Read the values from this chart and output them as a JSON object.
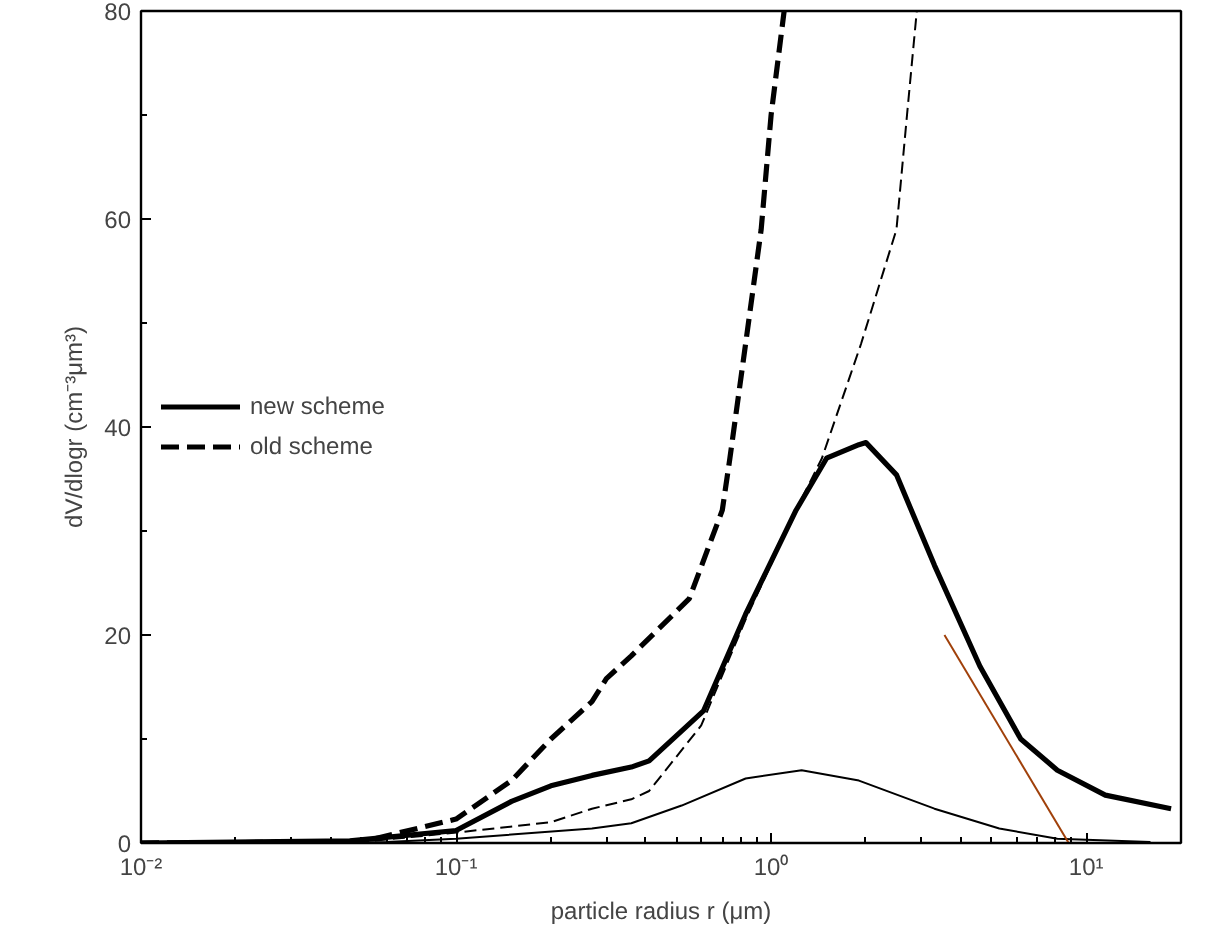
{
  "chart_data": {
    "type": "line",
    "xlabel": "particle radius r (μm)",
    "ylabel": "dV/dlogr (cm⁻³μm³)",
    "log": "x",
    "grid": false,
    "legend": "left",
    "marker": "none",
    "xlim": [
      0.01,
      20
    ],
    "ylim": [
      0,
      80
    ],
    "xticks": [
      {
        "value": 0.01,
        "label": "10⁻²"
      },
      {
        "value": 0.1,
        "label": "10⁻¹"
      },
      {
        "value": 1,
        "label": "10⁰"
      },
      {
        "value": 10,
        "label": "10¹"
      }
    ],
    "yticks": [
      0,
      20,
      40,
      60,
      80
    ],
    "series": [
      {
        "name": "new scheme",
        "color": "#000000",
        "line_style": "solid",
        "x": [
          0.01,
          0.046,
          0.1,
          0.15,
          0.2,
          0.27,
          0.36,
          0.41,
          0.61,
          0.83,
          1.2,
          1.5,
          1.9,
          2.0,
          2.5,
          3.3,
          4.6,
          6.2,
          8.1,
          11.5,
          18.6
        ],
        "values": [
          0,
          0.2,
          1.2,
          4,
          5.5,
          6.5,
          7.3,
          7.9,
          12.7,
          22,
          32,
          37,
          38.3,
          38.5,
          35.4,
          26.7,
          17,
          10,
          7,
          4.6,
          3.3
        ]
      },
      {
        "color": "#000000",
        "line_style": "solid",
        "x": [
          0.01,
          0.06,
          0.1,
          0.27,
          0.36,
          0.52,
          0.83,
          1.25,
          1.9,
          3.3,
          5.3,
          8.1,
          16
        ],
        "values": [
          0,
          0.1,
          0.4,
          1.4,
          1.9,
          3.6,
          6.2,
          7,
          6,
          3.3,
          1.4,
          0.4,
          0.1
        ]
      },
      {
        "name": "old scheme",
        "color": "#000000",
        "line_style": "dashed",
        "x": [
          0.01,
          0.05,
          0.1,
          0.15,
          0.2,
          0.27,
          0.3,
          0.36,
          0.55,
          0.7,
          0.74,
          0.83,
          0.93,
          1.0,
          1.1
        ],
        "values": [
          0,
          0.1,
          2.3,
          6,
          10,
          13.6,
          15.8,
          18,
          23.5,
          32,
          37,
          48,
          59,
          70,
          80
        ]
      },
      {
        "color": "#000000",
        "line_style": "dashed",
        "x": [
          0.01,
          0.05,
          0.1,
          0.2,
          0.27,
          0.36,
          0.41,
          0.6,
          0.83,
          1.2,
          1.45,
          1.93,
          2.5,
          2.7,
          2.9
        ],
        "values": [
          0,
          0.1,
          1,
          2,
          3.3,
          4.2,
          5,
          11.3,
          21.5,
          32,
          37,
          48,
          59,
          70,
          80
        ]
      },
      {
        "color": "#a0400a",
        "line_style": "solid",
        "x": [
          3.55,
          8.8
        ],
        "values": [
          20,
          0
        ]
      }
    ]
  }
}
